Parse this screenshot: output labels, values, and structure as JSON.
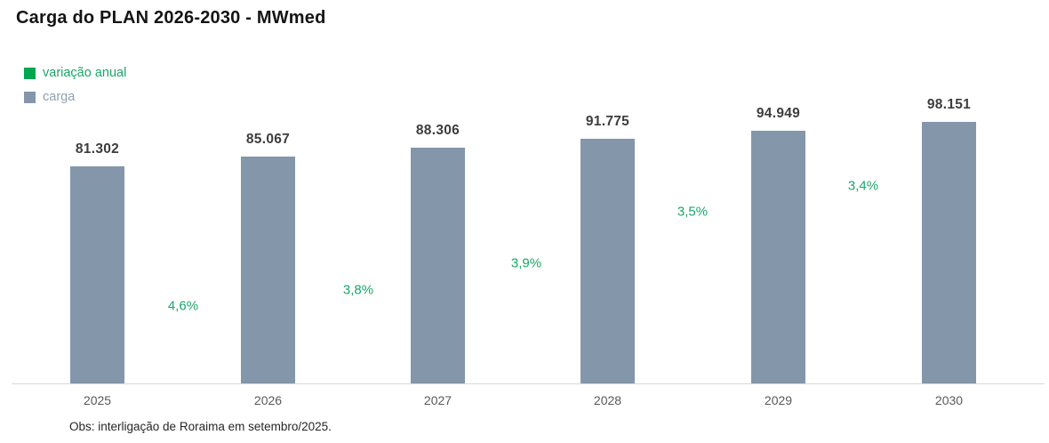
{
  "chart_data": {
    "type": "bar",
    "title": "Carga do PLAN 2026-2030 - MWmed",
    "note": "Obs: interligação de Roraima em setembro/2025.",
    "categories": [
      "2025",
      "2026",
      "2027",
      "2028",
      "2029",
      "2030"
    ],
    "series": [
      {
        "name": "carga",
        "type": "bar",
        "unit": "MWmed",
        "color": "#8496AA",
        "legend_text_color": "#8FA1B3",
        "values": [
          81302,
          85067,
          88306,
          91775,
          94949,
          98151
        ],
        "value_labels": [
          "81.302",
          "85.067",
          "88.306",
          "91.775",
          "94.949",
          "98.151"
        ]
      },
      {
        "name": "variação anual",
        "type": "point-labels",
        "unit": "%",
        "color": "#1BA668",
        "legend_swatch_color": "#00A651",
        "values": [
          4.6,
          3.8,
          3.9,
          3.5,
          3.4
        ],
        "labels": [
          "4,6%",
          "3,8%",
          "3,9%",
          "3,5%",
          "3,4%"
        ],
        "applies_between_years": [
          [
            "2025",
            "2026"
          ],
          [
            "2026",
            "2027"
          ],
          [
            "2027",
            "2028"
          ],
          [
            "2028",
            "2029"
          ],
          [
            "2029",
            "2030"
          ]
        ]
      }
    ],
    "ylim": [
      0,
      98151
    ],
    "grid": false,
    "y_axis_visible": false,
    "legend_position": "top-left"
  }
}
